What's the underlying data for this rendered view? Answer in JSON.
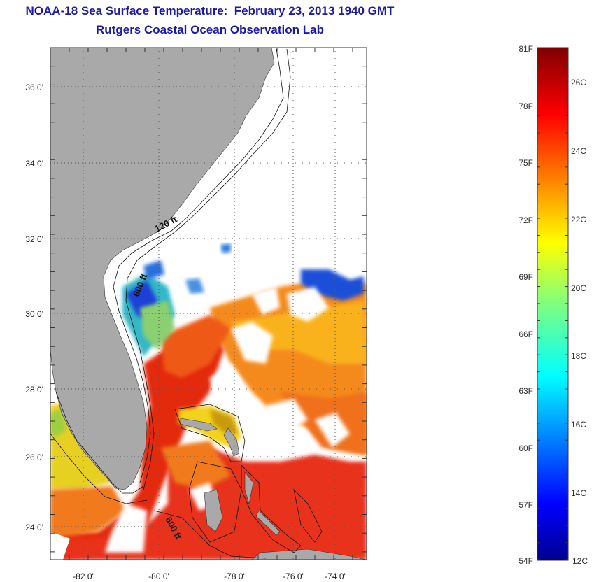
{
  "title": {
    "line1": "NOAA-18 Sea Surface Temperature:  February 23, 2013 1940 GMT",
    "line2": "Rutgers Coastal Ocean Observation Lab"
  },
  "map": {
    "lon_labels": [
      "-82 0'",
      "-80 0'",
      "-78 0'",
      "-76 0'",
      "-74 0'"
    ],
    "lat_labels": [
      "36 0'",
      "34 0'",
      "32 0'",
      "30 0'",
      "28 0'",
      "26 0'",
      "24 0'"
    ],
    "contour_labels": [
      "120 ft",
      "600 ft",
      "600 ft"
    ],
    "land_color": "#a9a9a9",
    "cloud_color": "#ffffff"
  },
  "colorbar": {
    "fahrenheit_labels": [
      "81F",
      "78F",
      "75F",
      "72F",
      "69F",
      "66F",
      "63F",
      "60F",
      "57F",
      "54F"
    ],
    "celsius_labels": [
      "26C",
      "24C",
      "22C",
      "20C",
      "18C",
      "16C",
      "14C",
      "12C"
    ],
    "colormap": "jet"
  }
}
